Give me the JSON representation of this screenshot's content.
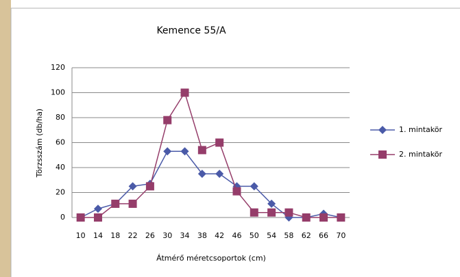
{
  "chart_data": {
    "type": "line",
    "title": "Kemence 55/A",
    "x_label": "Átmérő méretcsoportok (cm)",
    "y_label": "Törzsszám (db/ha)",
    "categories": [
      "10",
      "14",
      "18",
      "22",
      "26",
      "30",
      "34",
      "38",
      "42",
      "46",
      "50",
      "54",
      "58",
      "62",
      "66",
      "70"
    ],
    "series": [
      {
        "name": "1. mintakör",
        "color": "#4a5aa8",
        "marker": "diamond",
        "values": [
          0,
          7,
          11,
          25,
          27,
          53,
          53,
          35,
          35,
          25,
          25,
          11,
          0,
          0,
          3,
          0
        ]
      },
      {
        "name": "2. mintakör",
        "color": "#953d6a",
        "marker": "square",
        "values": [
          0,
          0,
          11,
          11,
          25,
          78,
          100,
          54,
          60,
          21,
          4,
          4,
          4,
          0,
          0,
          0
        ]
      }
    ],
    "ylim": [
      0,
      120
    ],
    "yticks": [
      0,
      20,
      40,
      60,
      80,
      100,
      120
    ],
    "grid": true,
    "legend": "right"
  }
}
